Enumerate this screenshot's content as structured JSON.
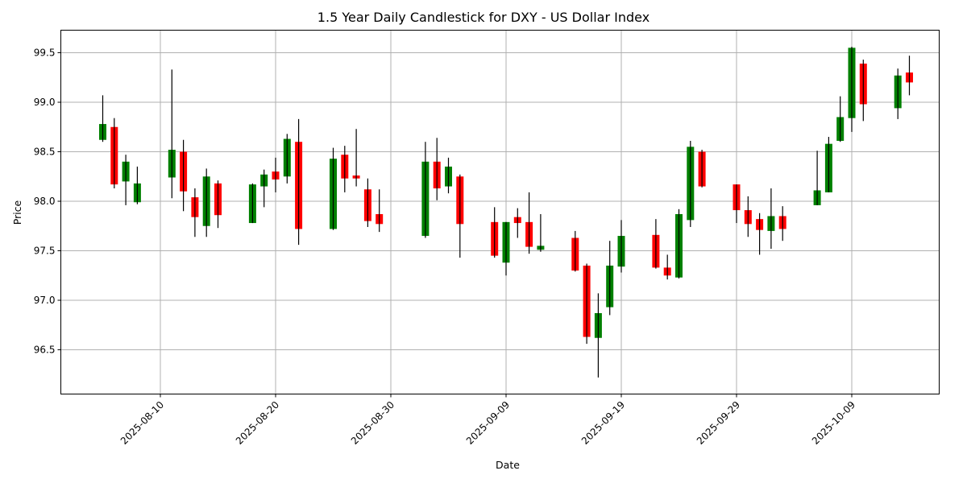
{
  "chart_data": {
    "type": "candlestick",
    "title": "1.5 Year Daily Candlestick for DXY - US Dollar Index",
    "xlabel": "Date",
    "ylabel": "Price",
    "ylim": [
      96.1,
      99.74
    ],
    "grid": true,
    "legend": null,
    "up_color": "#008000",
    "down_color": "#ff0000",
    "wick_color": "#000000",
    "yticks": [
      "96.5",
      "97.0",
      "97.5",
      "98.0",
      "98.5",
      "99.0",
      "99.5"
    ],
    "xticks": [
      "2025-08-10",
      "2025-08-20",
      "2025-08-30",
      "2025-09-09",
      "2025-09-19",
      "2025-09-29",
      "2025-10-09"
    ],
    "candles": [
      {
        "date": "2025-08-05",
        "open": 98.62,
        "high": 99.07,
        "low": 98.6,
        "close": 98.78
      },
      {
        "date": "2025-08-06",
        "open": 98.75,
        "high": 98.84,
        "low": 98.13,
        "close": 98.17
      },
      {
        "date": "2025-08-07",
        "open": 98.2,
        "high": 98.47,
        "low": 97.96,
        "close": 98.4
      },
      {
        "date": "2025-08-08",
        "open": 97.99,
        "high": 98.35,
        "low": 97.97,
        "close": 98.18
      },
      {
        "date": "2025-08-11",
        "open": 98.24,
        "high": 99.33,
        "low": 98.03,
        "close": 98.52
      },
      {
        "date": "2025-08-12",
        "open": 98.5,
        "high": 98.62,
        "low": 97.9,
        "close": 98.1
      },
      {
        "date": "2025-08-13",
        "open": 98.04,
        "high": 98.13,
        "low": 97.64,
        "close": 97.84
      },
      {
        "date": "2025-08-14",
        "open": 97.75,
        "high": 98.33,
        "low": 97.64,
        "close": 98.25
      },
      {
        "date": "2025-08-15",
        "open": 98.18,
        "high": 98.21,
        "low": 97.73,
        "close": 97.86
      },
      {
        "date": "2025-08-18",
        "open": 97.78,
        "high": 98.18,
        "low": 97.78,
        "close": 98.17
      },
      {
        "date": "2025-08-19",
        "open": 98.15,
        "high": 98.32,
        "low": 97.94,
        "close": 98.27
      },
      {
        "date": "2025-08-20",
        "open": 98.3,
        "high": 98.44,
        "low": 98.09,
        "close": 98.22
      },
      {
        "date": "2025-08-21",
        "open": 98.25,
        "high": 98.68,
        "low": 98.18,
        "close": 98.63
      },
      {
        "date": "2025-08-22",
        "open": 98.6,
        "high": 98.83,
        "low": 97.56,
        "close": 97.72
      },
      {
        "date": "2025-08-25",
        "open": 97.72,
        "high": 98.54,
        "low": 97.71,
        "close": 98.43
      },
      {
        "date": "2025-08-26",
        "open": 98.47,
        "high": 98.56,
        "low": 98.09,
        "close": 98.23
      },
      {
        "date": "2025-08-27",
        "open": 98.26,
        "high": 98.73,
        "low": 98.15,
        "close": 98.23
      },
      {
        "date": "2025-08-28",
        "open": 98.12,
        "high": 98.23,
        "low": 97.74,
        "close": 97.8
      },
      {
        "date": "2025-08-29",
        "open": 97.87,
        "high": 98.12,
        "low": 97.69,
        "close": 97.77
      },
      {
        "date": "2025-09-02",
        "open": 97.65,
        "high": 98.6,
        "low": 97.63,
        "close": 98.4
      },
      {
        "date": "2025-09-03",
        "open": 98.4,
        "high": 98.64,
        "low": 98.01,
        "close": 98.13
      },
      {
        "date": "2025-09-04",
        "open": 98.15,
        "high": 98.44,
        "low": 98.08,
        "close": 98.35
      },
      {
        "date": "2025-09-05",
        "open": 98.25,
        "high": 98.27,
        "low": 97.43,
        "close": 97.77
      },
      {
        "date": "2025-09-08",
        "open": 97.79,
        "high": 97.94,
        "low": 97.43,
        "close": 97.45
      },
      {
        "date": "2025-09-09",
        "open": 97.38,
        "high": 97.79,
        "low": 97.25,
        "close": 97.79
      },
      {
        "date": "2025-09-10",
        "open": 97.84,
        "high": 97.93,
        "low": 97.63,
        "close": 97.78
      },
      {
        "date": "2025-09-11",
        "open": 97.79,
        "high": 98.09,
        "low": 97.47,
        "close": 97.54
      },
      {
        "date": "2025-09-12",
        "open": 97.51,
        "high": 97.87,
        "low": 97.49,
        "close": 97.55
      },
      {
        "date": "2025-09-15",
        "open": 97.63,
        "high": 97.7,
        "low": 97.29,
        "close": 97.3
      },
      {
        "date": "2025-09-16",
        "open": 97.35,
        "high": 97.37,
        "low": 96.56,
        "close": 96.63
      },
      {
        "date": "2025-09-17",
        "open": 96.62,
        "high": 97.07,
        "low": 96.22,
        "close": 96.87
      },
      {
        "date": "2025-09-18",
        "open": 96.93,
        "high": 97.6,
        "low": 96.85,
        "close": 97.35
      },
      {
        "date": "2025-09-19",
        "open": 97.34,
        "high": 97.81,
        "low": 97.28,
        "close": 97.65
      },
      {
        "date": "2025-09-22",
        "open": 97.66,
        "high": 97.82,
        "low": 97.32,
        "close": 97.33
      },
      {
        "date": "2025-09-23",
        "open": 97.33,
        "high": 97.46,
        "low": 97.21,
        "close": 97.25
      },
      {
        "date": "2025-09-24",
        "open": 97.23,
        "high": 97.92,
        "low": 97.22,
        "close": 97.87
      },
      {
        "date": "2025-09-25",
        "open": 97.81,
        "high": 98.61,
        "low": 97.74,
        "close": 98.55
      },
      {
        "date": "2025-09-26",
        "open": 98.5,
        "high": 98.52,
        "low": 98.14,
        "close": 98.15
      },
      {
        "date": "2025-09-29",
        "open": 98.17,
        "high": 98.17,
        "low": 97.78,
        "close": 97.91
      },
      {
        "date": "2025-09-30",
        "open": 97.91,
        "high": 98.05,
        "low": 97.64,
        "close": 97.77
      },
      {
        "date": "2025-10-01",
        "open": 97.82,
        "high": 97.88,
        "low": 97.46,
        "close": 97.71
      },
      {
        "date": "2025-10-02",
        "open": 97.7,
        "high": 98.13,
        "low": 97.52,
        "close": 97.85
      },
      {
        "date": "2025-10-03",
        "open": 97.85,
        "high": 97.95,
        "low": 97.6,
        "close": 97.72
      },
      {
        "date": "2025-10-06",
        "open": 97.96,
        "high": 98.51,
        "low": 97.96,
        "close": 98.11
      },
      {
        "date": "2025-10-07",
        "open": 98.09,
        "high": 98.65,
        "low": 98.09,
        "close": 98.58
      },
      {
        "date": "2025-10-08",
        "open": 98.61,
        "high": 99.06,
        "low": 98.6,
        "close": 98.85
      },
      {
        "date": "2025-10-09",
        "open": 98.84,
        "high": 99.56,
        "low": 98.7,
        "close": 99.55
      },
      {
        "date": "2025-10-10",
        "open": 99.39,
        "high": 99.43,
        "low": 98.81,
        "close": 98.98
      },
      {
        "date": "2025-10-13",
        "open": 98.94,
        "high": 99.34,
        "low": 98.83,
        "close": 99.27
      },
      {
        "date": "2025-10-14",
        "open": 99.3,
        "high": 99.47,
        "low": 99.07,
        "close": 99.2
      }
    ]
  }
}
